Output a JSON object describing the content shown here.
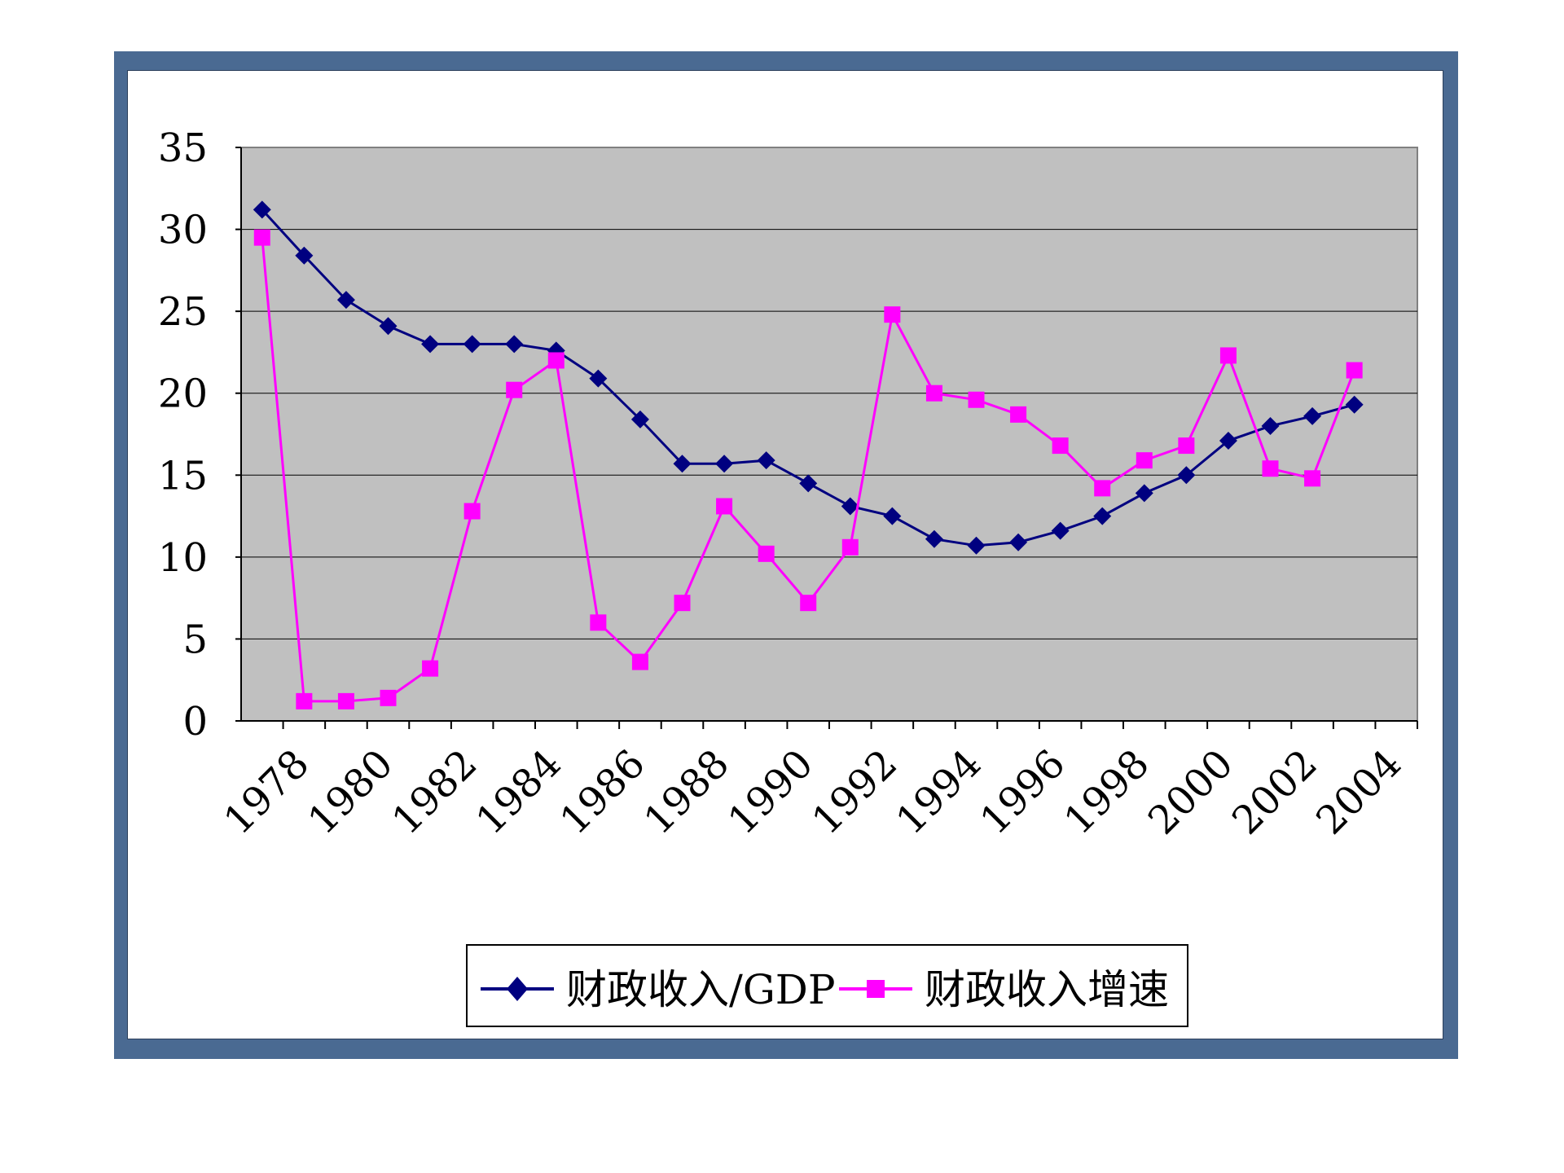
{
  "chart_data": {
    "type": "line",
    "x": [
      1978,
      1979,
      1980,
      1981,
      1982,
      1983,
      1984,
      1985,
      1986,
      1987,
      1988,
      1989,
      1990,
      1991,
      1992,
      1993,
      1994,
      1995,
      1996,
      1997,
      1998,
      1999,
      2000,
      2001,
      2002,
      2003,
      2004
    ],
    "x_tick_labels": [
      "1978",
      "1980",
      "1982",
      "1984",
      "1986",
      "1988",
      "1990",
      "1992",
      "1994",
      "1996",
      "1998",
      "2000",
      "2002",
      "2004"
    ],
    "y_ticks": [
      0,
      5,
      10,
      15,
      20,
      25,
      30,
      35
    ],
    "ylim": [
      0,
      35
    ],
    "grid": true,
    "legend_position": "bottom",
    "series": [
      {
        "name": "财政收入/GDP",
        "color": "#000080",
        "marker": "diamond",
        "values": [
          31.2,
          28.4,
          25.7,
          24.1,
          23.0,
          23.0,
          23.0,
          22.6,
          20.9,
          18.4,
          15.7,
          15.7,
          15.9,
          14.5,
          13.1,
          12.5,
          11.1,
          10.7,
          10.9,
          11.6,
          12.5,
          13.9,
          15.0,
          17.1,
          18.0,
          18.6,
          19.3
        ]
      },
      {
        "name": "财政收入增速",
        "color": "#ff00ff",
        "marker": "square",
        "values": [
          29.5,
          1.2,
          1.2,
          1.4,
          3.2,
          12.8,
          20.2,
          22.0,
          6.0,
          3.6,
          7.2,
          13.1,
          10.2,
          7.2,
          10.6,
          24.8,
          20.0,
          19.6,
          18.7,
          16.8,
          14.2,
          15.9,
          16.8,
          22.3,
          15.4,
          14.8,
          21.4
        ]
      }
    ]
  },
  "colors": {
    "plot_bg": "#c0c0c0",
    "frame": "#4a6a92",
    "grid": "#000000"
  }
}
